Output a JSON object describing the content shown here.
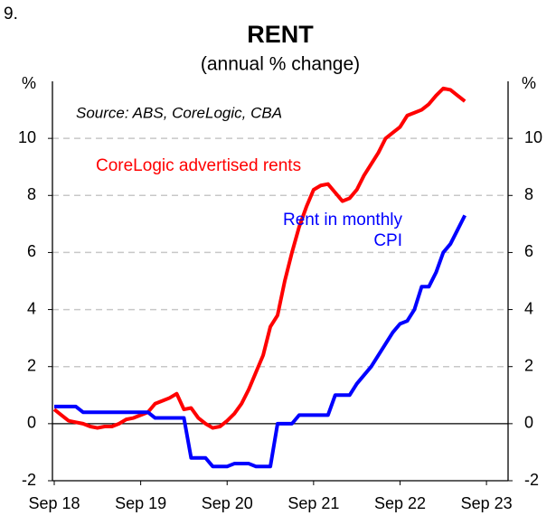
{
  "chart_data": {
    "type": "line",
    "number": "9.",
    "title": "RENT",
    "subtitle": "(annual % change)",
    "y_label": "%",
    "y2_label": "%",
    "annotation": "Source: ABS, CoreLogic, CBA",
    "categories": [
      "Sep 18",
      null,
      null,
      null,
      null,
      null,
      null,
      null,
      null,
      null,
      null,
      null,
      "Sep 19",
      null,
      null,
      null,
      null,
      null,
      null,
      null,
      null,
      null,
      null,
      null,
      "Sep 20",
      null,
      null,
      null,
      null,
      null,
      null,
      null,
      null,
      null,
      null,
      null,
      "Sep 21",
      null,
      null,
      null,
      null,
      null,
      null,
      null,
      null,
      null,
      null,
      null,
      "Sep 22",
      null,
      null,
      null,
      null,
      null,
      null,
      null,
      null,
      null,
      null,
      null,
      "Sep 23",
      null,
      null,
      null
    ],
    "series": [
      {
        "name": "CoreLogic advertised rents",
        "color": "#ff0000",
        "values": [
          0.5,
          0.3,
          0.1,
          0.05,
          0.0,
          -0.1,
          -0.15,
          -0.1,
          -0.1,
          0.0,
          0.15,
          0.2,
          0.3,
          0.4,
          0.7,
          0.8,
          0.9,
          1.05,
          0.5,
          0.55,
          0.2,
          0.0,
          -0.15,
          -0.1,
          0.1,
          0.35,
          0.7,
          1.2,
          1.8,
          2.4,
          3.4,
          3.8,
          5.0,
          6.0,
          6.9,
          7.6,
          8.2,
          8.35,
          8.4,
          8.1,
          7.8,
          7.9,
          8.2,
          8.7,
          9.1,
          9.5,
          10.0,
          10.2,
          10.4,
          10.8,
          10.9,
          11.0,
          11.2,
          11.5,
          11.75,
          11.7,
          11.5,
          11.3,
          null,
          null,
          null,
          null,
          null,
          null
        ]
      },
      {
        "name": "Rent in monthly CPI",
        "color": "#0000ff",
        "values": [
          0.6,
          0.6,
          0.6,
          0.6,
          0.4,
          0.4,
          0.4,
          0.4,
          0.4,
          0.4,
          0.4,
          0.4,
          0.4,
          0.4,
          0.2,
          0.2,
          0.2,
          0.2,
          0.2,
          -1.2,
          -1.2,
          -1.2,
          -1.5,
          -1.5,
          -1.5,
          -1.4,
          -1.4,
          -1.4,
          -1.5,
          -1.5,
          -1.5,
          0.0,
          0.0,
          0.0,
          0.3,
          0.3,
          0.3,
          0.3,
          0.3,
          1.0,
          1.0,
          1.0,
          1.4,
          1.7,
          2.0,
          2.4,
          2.8,
          3.2,
          3.5,
          3.6,
          4.0,
          4.8,
          4.8,
          5.3,
          6.0,
          6.3,
          6.8,
          7.3,
          null,
          null,
          null,
          null,
          null,
          null
        ]
      }
    ],
    "ylim": [
      -2,
      12
    ],
    "yticks": [
      -2,
      0,
      2,
      4,
      6,
      8,
      10
    ],
    "y2lim": [
      -2,
      12
    ],
    "y2ticks": [
      -2,
      0,
      2,
      4,
      6,
      8,
      10
    ],
    "grid": true
  }
}
